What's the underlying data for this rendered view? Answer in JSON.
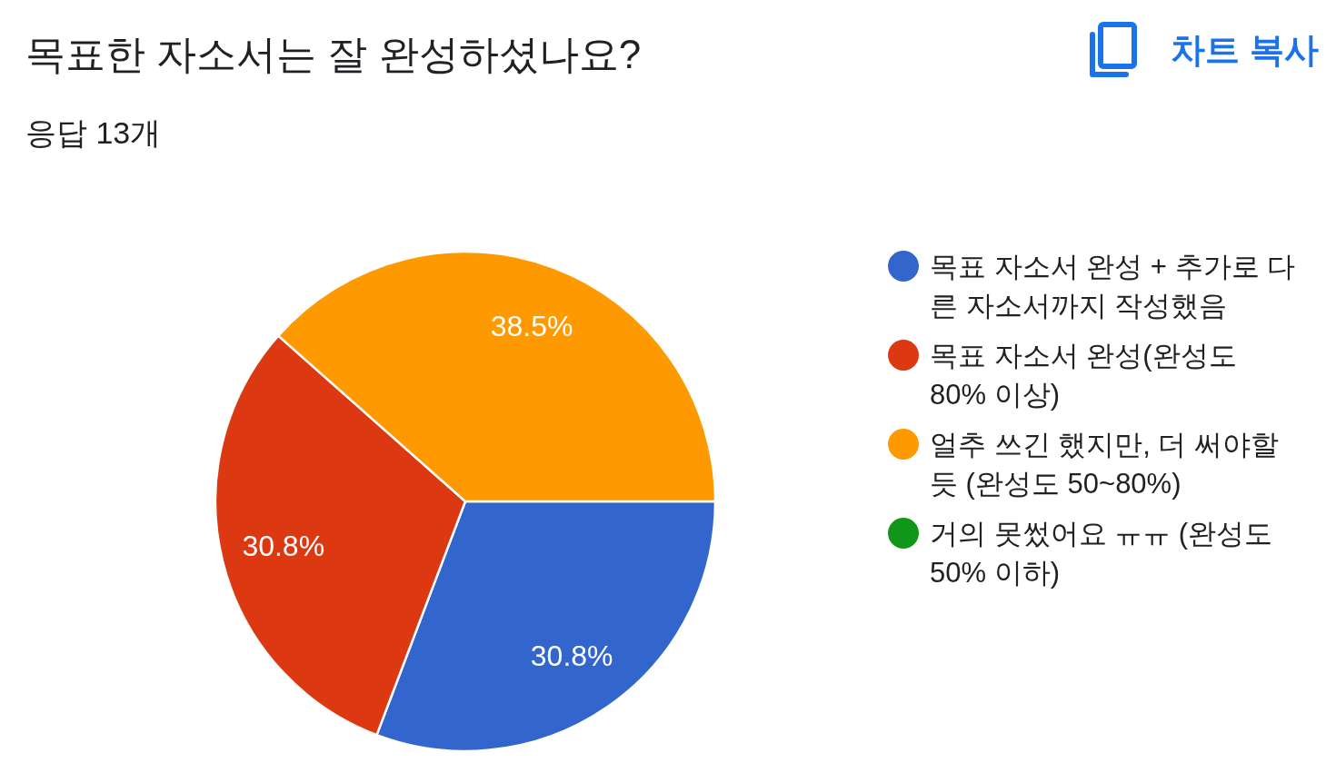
{
  "chart_data": {
    "type": "pie",
    "title": "목표한 자소서는 잘 완성하셨나요?",
    "subtitle": "응답 13개",
    "categories": [
      "목표 자소서 완성 + 추가로 다른 자소서까지 작성했음",
      "목표 자소서 완성(완성도 80% 이상)",
      "얼추 쓰긴 했지만, 더 써야할 듯 (완성도 50~80%)",
      "거의 못썼어요 ㅠㅠ (완성도 50% 이하)"
    ],
    "values": [
      30.8,
      30.8,
      38.5,
      0
    ],
    "colors": [
      "#3366cc",
      "#dc3912",
      "#ff9900",
      "#109618"
    ],
    "value_labels": [
      "30.8%",
      "30.8%",
      "38.5%",
      null
    ],
    "legend": "right",
    "annotations": [
      "차트 복사"
    ]
  }
}
